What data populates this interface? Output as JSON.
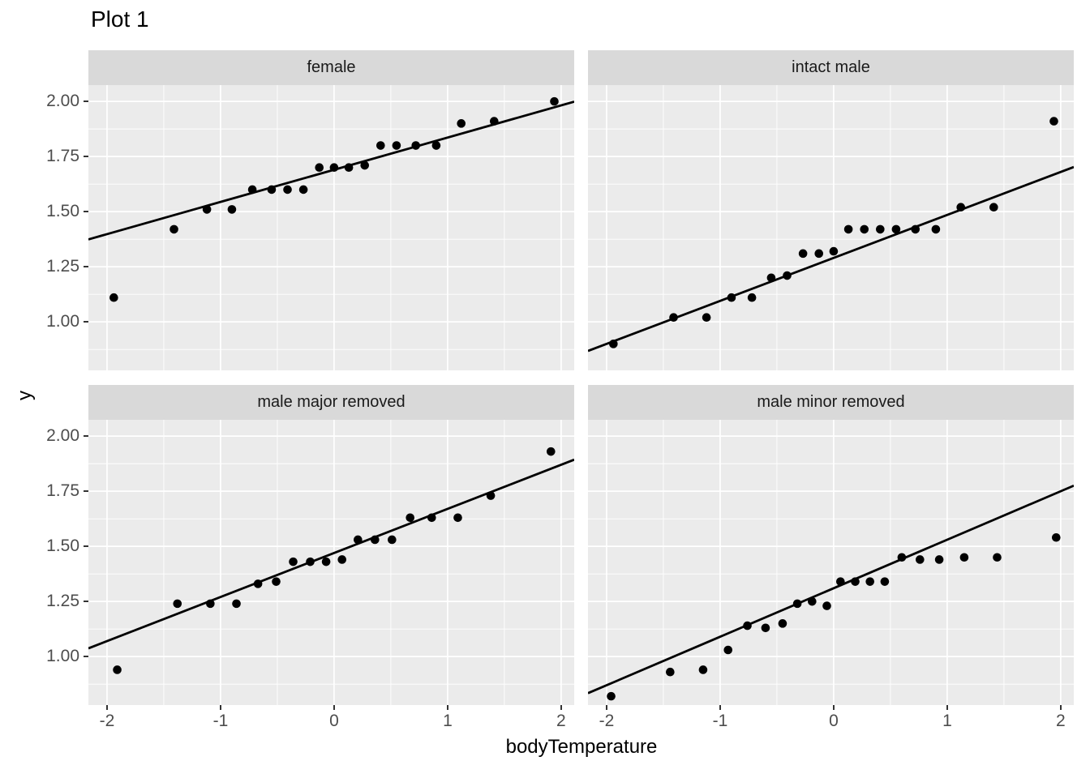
{
  "title": "Plot 1",
  "x_axis": {
    "label": "bodyTemperature",
    "tick_labels": [
      "-2",
      "-1",
      "0",
      "1",
      "2"
    ],
    "tick_values": [
      -2,
      -1,
      0,
      1,
      2
    ],
    "minor_values": [
      -1.5,
      -0.5,
      0.5,
      1.5
    ],
    "range": [
      -2.164,
      2.115
    ]
  },
  "y_axis": {
    "label": "y",
    "tick_labels": [
      "2.00",
      "1.75",
      "1.50",
      "1.25",
      "1.00"
    ],
    "tick_values": [
      2.0,
      1.75,
      1.5,
      1.25,
      1.0
    ],
    "minor_values": [
      1.875,
      1.625,
      1.375,
      1.125,
      0.875
    ],
    "range": [
      0.78,
      2.074
    ]
  },
  "colors": {
    "panel_background": "#ebebeb",
    "strip_background": "#d9d9d9",
    "gridline": "#ffffff",
    "point": "#000000",
    "fit_line": "#000000",
    "tick_label": "#4d4d4d",
    "tick_mark": "#333333",
    "text": "#000000"
  },
  "chart_data": [
    {
      "facet": "female",
      "type": "scatter",
      "x": [
        -1.94,
        -1.41,
        -1.12,
        -0.9,
        -0.72,
        -0.55,
        -0.41,
        -0.27,
        -0.13,
        0.0,
        0.13,
        0.27,
        0.41,
        0.55,
        0.72,
        0.9,
        1.12,
        1.41,
        1.94
      ],
      "y": [
        1.11,
        1.42,
        1.51,
        1.51,
        1.6,
        1.6,
        1.6,
        1.6,
        1.7,
        1.7,
        1.7,
        1.71,
        1.8,
        1.8,
        1.8,
        1.8,
        1.9,
        1.91,
        2.0
      ],
      "fit_line": {
        "intercept": 1.69,
        "slope": 0.146
      }
    },
    {
      "facet": "intact male",
      "type": "scatter",
      "x": [
        -1.94,
        -1.41,
        -1.12,
        -0.9,
        -0.72,
        -0.55,
        -0.41,
        -0.27,
        -0.13,
        0.0,
        0.13,
        0.27,
        0.41,
        0.55,
        0.72,
        0.9,
        1.12,
        1.41,
        1.94
      ],
      "y": [
        0.9,
        1.02,
        1.02,
        1.11,
        1.11,
        1.2,
        1.21,
        1.31,
        1.31,
        1.32,
        1.42,
        1.42,
        1.42,
        1.42,
        1.42,
        1.42,
        1.52,
        1.52,
        1.91
      ],
      "fit_line": {
        "intercept": 1.29,
        "slope": 0.195
      }
    },
    {
      "facet": "male major removed",
      "type": "scatter",
      "x": [
        -1.91,
        -1.38,
        -1.09,
        -0.86,
        -0.67,
        -0.51,
        -0.36,
        -0.21,
        -0.07,
        0.07,
        0.21,
        0.36,
        0.51,
        0.67,
        0.86,
        1.09,
        1.38,
        1.91
      ],
      "y": [
        0.94,
        1.24,
        1.24,
        1.24,
        1.33,
        1.34,
        1.43,
        1.43,
        1.43,
        1.44,
        1.53,
        1.53,
        1.53,
        1.63,
        1.63,
        1.63,
        1.73,
        1.93
      ],
      "fit_line": {
        "intercept": 1.47,
        "slope": 0.2
      }
    },
    {
      "facet": "male minor removed",
      "type": "scatter",
      "x": [
        -1.96,
        -1.44,
        -1.15,
        -0.93,
        -0.76,
        -0.6,
        -0.45,
        -0.32,
        -0.19,
        -0.06,
        0.06,
        0.19,
        0.32,
        0.45,
        0.6,
        0.76,
        0.93,
        1.15,
        1.44,
        1.96
      ],
      "y": [
        0.82,
        0.93,
        0.94,
        1.03,
        1.14,
        1.13,
        1.15,
        1.24,
        1.25,
        1.23,
        1.34,
        1.34,
        1.34,
        1.34,
        1.45,
        1.44,
        1.44,
        1.45,
        1.45,
        1.54
      ],
      "fit_line": {
        "intercept": 1.31,
        "slope": 0.22
      }
    }
  ]
}
